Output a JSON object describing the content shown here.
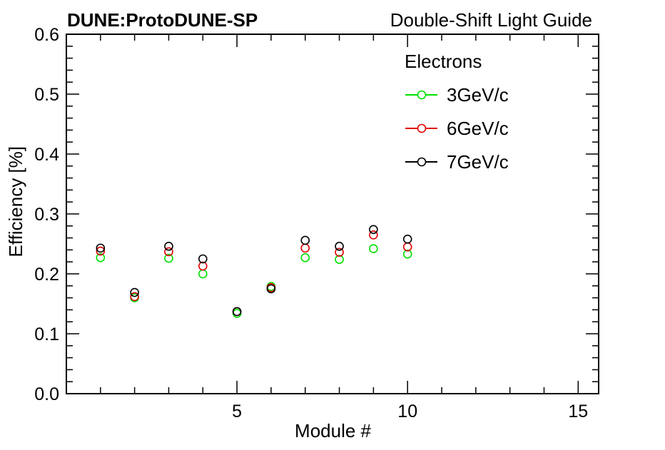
{
  "chart_data": {
    "type": "scatter",
    "title_left": "DUNE:ProtoDUNE-SP",
    "title_right": "Double-Shift Light Guide",
    "xlabel": "Module #",
    "ylabel": "Efficiency [%]",
    "xlim": [
      0.0,
      15.6
    ],
    "ylim": [
      0.0,
      0.6
    ],
    "x_ticks": [
      5,
      10,
      15
    ],
    "x_tick_labels": [
      "5",
      "10",
      "15"
    ],
    "y_ticks": [
      0.0,
      0.1,
      0.2,
      0.3,
      0.4,
      0.5,
      0.6
    ],
    "y_tick_labels": [
      "0.0",
      "0.1",
      "0.2",
      "0.3",
      "0.4",
      "0.5",
      "0.6"
    ],
    "legend_title": "Electrons",
    "legend_position": "top-right",
    "marker": "open-circle",
    "x": [
      1,
      2,
      3,
      4,
      5,
      6,
      7,
      8,
      9,
      10
    ],
    "series": [
      {
        "name": "3GeV/c",
        "color": "#00e000",
        "values": [
          0.227,
          0.16,
          0.226,
          0.2,
          0.134,
          0.179,
          0.227,
          0.224,
          0.242,
          0.233
        ]
      },
      {
        "name": "6GeV/c",
        "color": "#e00000",
        "values": [
          0.238,
          0.162,
          0.237,
          0.213,
          0.137,
          0.177,
          0.243,
          0.236,
          0.265,
          0.245
        ]
      },
      {
        "name": "7GeV/c",
        "color": "#000000",
        "values": [
          0.243,
          0.169,
          0.246,
          0.225,
          0.137,
          0.175,
          0.256,
          0.246,
          0.274,
          0.258
        ]
      }
    ]
  }
}
